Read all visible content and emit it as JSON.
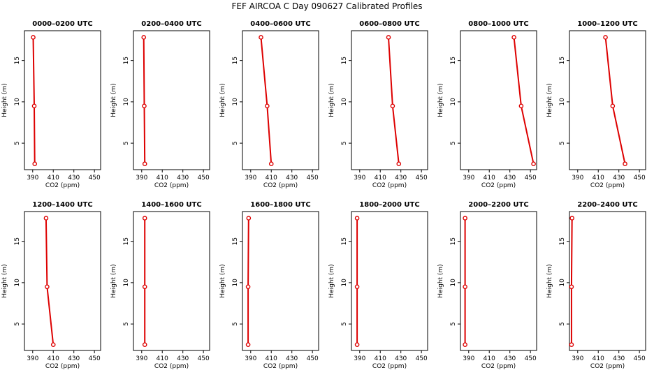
{
  "figure": {
    "title": "FEF AIRCOA C  Day 090627  Calibrated Profiles"
  },
  "chart_data": [
    {
      "type": "line",
      "title": "0000–0200 UTC",
      "xlabel": "CO2 (ppm)",
      "ylabel": "Height (m)",
      "xlim": [
        382,
        456
      ],
      "ylim": [
        1.8,
        18.6
      ],
      "xticks": [
        390,
        410,
        430,
        450
      ],
      "yticks": [
        5,
        10,
        15
      ],
      "x": [
        392,
        391.5,
        390.5
      ],
      "y": [
        2.5,
        9.5,
        17.8
      ],
      "series": [
        {
          "values": [
            392,
            391.5,
            390.5
          ]
        }
      ]
    },
    {
      "type": "line",
      "title": "0200–0400 UTC",
      "xlabel": "CO2 (ppm)",
      "ylabel": "Height (m)",
      "xlim": [
        382,
        456
      ],
      "ylim": [
        1.8,
        18.6
      ],
      "xticks": [
        390,
        410,
        430,
        450
      ],
      "yticks": [
        5,
        10,
        15
      ],
      "x": [
        393,
        392.5,
        392
      ],
      "y": [
        2.5,
        9.5,
        17.8
      ],
      "series": [
        {
          "values": [
            393,
            392.5,
            392
          ]
        }
      ]
    },
    {
      "type": "line",
      "title": "0400–0600 UTC",
      "xlabel": "CO2 (ppm)",
      "ylabel": "Height (m)",
      "xlim": [
        382,
        456
      ],
      "ylim": [
        1.8,
        18.6
      ],
      "xticks": [
        390,
        410,
        430,
        450
      ],
      "yticks": [
        5,
        10,
        15
      ],
      "x": [
        410,
        406,
        400
      ],
      "y": [
        2.5,
        9.5,
        17.8
      ],
      "series": [
        {
          "values": [
            410,
            406,
            400
          ]
        }
      ]
    },
    {
      "type": "line",
      "title": "0600–0800 UTC",
      "xlabel": "CO2 (ppm)",
      "ylabel": "Height (m)",
      "xlim": [
        382,
        456
      ],
      "ylim": [
        1.8,
        18.6
      ],
      "xticks": [
        390,
        410,
        430,
        450
      ],
      "yticks": [
        5,
        10,
        15
      ],
      "x": [
        428,
        422,
        418
      ],
      "y": [
        2.5,
        9.5,
        17.8
      ],
      "series": [
        {
          "values": [
            428,
            422,
            418
          ]
        }
      ]
    },
    {
      "type": "line",
      "title": "0800–1000 UTC",
      "xlabel": "CO2 (ppm)",
      "ylabel": "Height (m)",
      "xlim": [
        382,
        456
      ],
      "ylim": [
        1.8,
        18.6
      ],
      "xticks": [
        390,
        410,
        430,
        450
      ],
      "yticks": [
        5,
        10,
        15
      ],
      "x": [
        453,
        441,
        434
      ],
      "y": [
        2.5,
        9.5,
        17.8
      ],
      "series": [
        {
          "values": [
            453,
            441,
            434
          ]
        }
      ]
    },
    {
      "type": "line",
      "title": "1000–1200 UTC",
      "xlabel": "CO2 (ppm)",
      "ylabel": "Height (m)",
      "xlim": [
        382,
        456
      ],
      "ylim": [
        1.8,
        18.6
      ],
      "xticks": [
        390,
        410,
        430,
        450
      ],
      "yticks": [
        5,
        10,
        15
      ],
      "x": [
        436,
        424,
        417
      ],
      "y": [
        2.5,
        9.5,
        17.8
      ],
      "series": [
        {
          "values": [
            436,
            424,
            417
          ]
        }
      ]
    },
    {
      "type": "line",
      "title": "1200–1400 UTC",
      "xlabel": "CO2 (ppm)",
      "ylabel": "Height (m)",
      "xlim": [
        382,
        456
      ],
      "ylim": [
        1.8,
        18.6
      ],
      "xticks": [
        390,
        410,
        430,
        450
      ],
      "yticks": [
        5,
        10,
        15
      ],
      "x": [
        410,
        404,
        403
      ],
      "y": [
        2.5,
        9.5,
        17.8
      ],
      "series": [
        {
          "values": [
            410,
            404,
            403
          ]
        }
      ]
    },
    {
      "type": "line",
      "title": "1400–1600 UTC",
      "xlabel": "CO2 (ppm)",
      "ylabel": "Height (m)",
      "xlim": [
        382,
        456
      ],
      "ylim": [
        1.8,
        18.6
      ],
      "xticks": [
        390,
        410,
        430,
        450
      ],
      "yticks": [
        5,
        10,
        15
      ],
      "x": [
        393,
        393,
        393
      ],
      "y": [
        2.5,
        9.5,
        17.8
      ],
      "series": [
        {
          "values": [
            393,
            393,
            393
          ]
        }
      ]
    },
    {
      "type": "line",
      "title": "1600–1800 UTC",
      "xlabel": "CO2 (ppm)",
      "ylabel": "Height (m)",
      "xlim": [
        382,
        456
      ],
      "ylim": [
        1.8,
        18.6
      ],
      "xticks": [
        390,
        410,
        430,
        450
      ],
      "yticks": [
        5,
        10,
        15
      ],
      "x": [
        387.5,
        387.5,
        388
      ],
      "y": [
        2.5,
        9.5,
        17.8
      ],
      "series": [
        {
          "values": [
            387.5,
            387.5,
            388
          ]
        }
      ]
    },
    {
      "type": "line",
      "title": "1800–2000 UTC",
      "xlabel": "CO2 (ppm)",
      "ylabel": "Height (m)",
      "xlim": [
        382,
        456
      ],
      "ylim": [
        1.8,
        18.6
      ],
      "xticks": [
        390,
        410,
        430,
        450
      ],
      "yticks": [
        5,
        10,
        15
      ],
      "x": [
        387.5,
        387.5,
        387.5
      ],
      "y": [
        2.5,
        9.5,
        17.8
      ],
      "series": [
        {
          "values": [
            387.5,
            387.5,
            387.5
          ]
        }
      ]
    },
    {
      "type": "line",
      "title": "2000–2200 UTC",
      "xlabel": "CO2 (ppm)",
      "ylabel": "Height (m)",
      "xlim": [
        382,
        456
      ],
      "ylim": [
        1.8,
        18.6
      ],
      "xticks": [
        390,
        410,
        430,
        450
      ],
      "yticks": [
        5,
        10,
        15
      ],
      "x": [
        386.5,
        386.5,
        386.5
      ],
      "y": [
        2.5,
        9.5,
        17.8
      ],
      "series": [
        {
          "values": [
            386.5,
            386.5,
            386.5
          ]
        }
      ]
    },
    {
      "type": "line",
      "title": "2200–2400 UTC",
      "xlabel": "CO2 (ppm)",
      "ylabel": "Height (m)",
      "xlim": [
        382,
        456
      ],
      "ylim": [
        1.8,
        18.6
      ],
      "xticks": [
        390,
        410,
        430,
        450
      ],
      "yticks": [
        5,
        10,
        15
      ],
      "x": [
        384,
        384,
        384.5
      ],
      "y": [
        2.5,
        9.5,
        17.8
      ],
      "series": [
        {
          "values": [
            384,
            384,
            384.5
          ]
        }
      ]
    }
  ],
  "style": {
    "line_color": "#dd0000",
    "marker_color": "#dd0000",
    "axis_color": "#000000"
  }
}
